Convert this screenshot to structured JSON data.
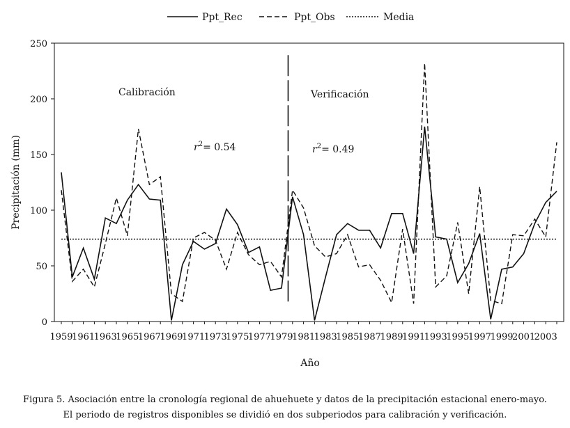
{
  "chart_data": {
    "type": "line",
    "title": "",
    "xlabel": "Año",
    "ylabel": "Precipitación (mm)",
    "ylim": [
      0,
      250
    ],
    "yticks": [
      0,
      50,
      100,
      150,
      200,
      250
    ],
    "xlim": [
      1959,
      2004
    ],
    "xticks": [
      1959,
      1961,
      1963,
      1965,
      1967,
      1969,
      1971,
      1973,
      1975,
      1977,
      1979,
      1981,
      1983,
      1985,
      1987,
      1989,
      1991,
      1993,
      1995,
      1997,
      1999,
      2001,
      2003
    ],
    "x": [
      1959,
      1960,
      1961,
      1962,
      1963,
      1964,
      1965,
      1966,
      1967,
      1968,
      1969,
      1970,
      1971,
      1972,
      1973,
      1974,
      1975,
      1976,
      1977,
      1978,
      1979,
      1980,
      1981,
      1982,
      1983,
      1984,
      1985,
      1986,
      1987,
      1988,
      1989,
      1990,
      1991,
      1992,
      1993,
      1994,
      1995,
      1996,
      1997,
      1998,
      1999,
      2000,
      2001,
      2002,
      2003,
      2004
    ],
    "series": [
      {
        "name": "Ppt_Rec",
        "style": "solid",
        "values": [
          134,
          40,
          66,
          38,
          93,
          88,
          109,
          123,
          110,
          109,
          1,
          51,
          72,
          65,
          70,
          101,
          87,
          62,
          67,
          28,
          30,
          112,
          78,
          1,
          40,
          78,
          88,
          82,
          82,
          66,
          97,
          97,
          61,
          175,
          76,
          74,
          35,
          52,
          79,
          2,
          47,
          49,
          61,
          88,
          107,
          117
        ]
      },
      {
        "name": "Ppt_Obs",
        "style": "dashed",
        "values": [
          118,
          36,
          47,
          31,
          70,
          111,
          77,
          173,
          123,
          130,
          25,
          18,
          75,
          80,
          73,
          47,
          80,
          60,
          51,
          54,
          40,
          118,
          102,
          68,
          58,
          61,
          78,
          49,
          51,
          37,
          17,
          83,
          16,
          232,
          31,
          41,
          89,
          25,
          121,
          19,
          16,
          78,
          77,
          92,
          76,
          161
        ]
      }
    ],
    "reference_lines": [
      {
        "name": "Media",
        "style": "dotted",
        "value": 74
      }
    ],
    "divider": {
      "x": 1979.6,
      "y_range": [
        18,
        241
      ]
    },
    "legend": {
      "position": "top",
      "entries": [
        "Ppt_Rec",
        "Ppt_Obs",
        "Media"
      ]
    },
    "annotations": [
      {
        "id": "calibracion",
        "text": "Calibración"
      },
      {
        "id": "verificacion",
        "text": "Verificación"
      },
      {
        "id": "r2_cal",
        "symbol": "r",
        "sup": "2",
        "text": "= 0.54"
      },
      {
        "id": "r2_ver",
        "symbol": "r",
        "sup": "2",
        "text": "= 0.49"
      }
    ]
  },
  "caption": {
    "line1": "Figura 5. Asociación entre la cronología regional de ahuehuete y datos de la precipitación estacional enero-mayo.",
    "line2": "El periodo de registros disponibles se dividió en dos subperiodos para calibración y verificación."
  }
}
